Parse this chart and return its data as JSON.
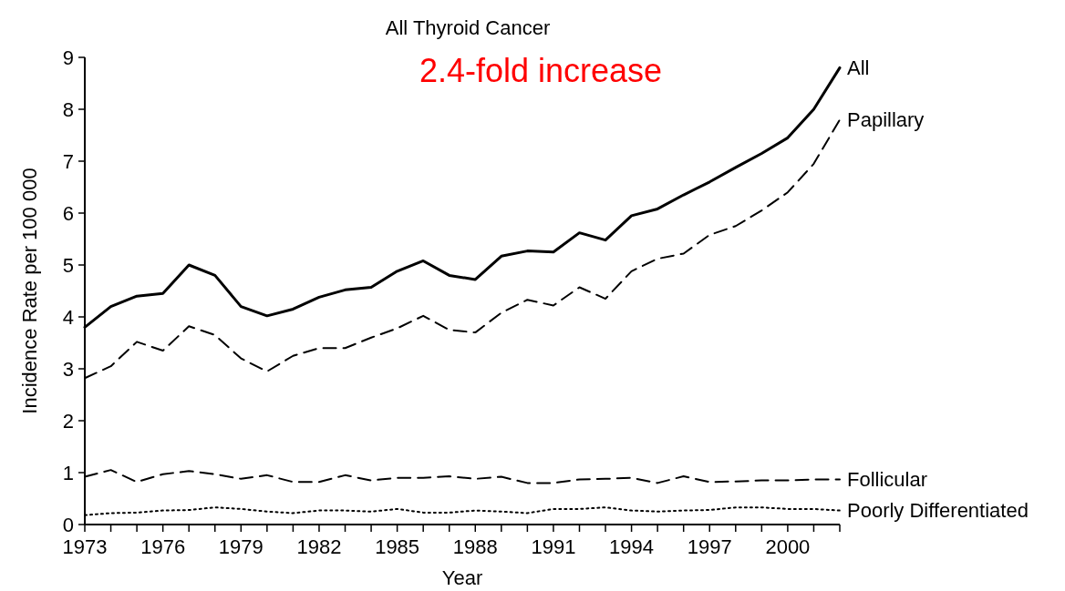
{
  "chart_data": {
    "type": "line",
    "title": "All Thyroid Cancer",
    "xlabel": "Year",
    "ylabel": "Incidence Rate per 100 000",
    "annotations": [
      "2.4-fold increase"
    ],
    "x": [
      1973,
      1974,
      1975,
      1976,
      1977,
      1978,
      1979,
      1980,
      1981,
      1982,
      1983,
      1984,
      1985,
      1986,
      1987,
      1988,
      1989,
      1990,
      1991,
      1992,
      1993,
      1994,
      1995,
      1996,
      1997,
      1998,
      1999,
      2000,
      2001,
      2002
    ],
    "series": [
      {
        "name": "All",
        "color": "#000000",
        "line_style": "solid",
        "values": [
          3.8,
          4.2,
          4.4,
          4.45,
          5.0,
          4.8,
          4.2,
          4.02,
          4.15,
          4.38,
          4.52,
          4.57,
          4.88,
          5.08,
          4.8,
          4.72,
          5.17,
          5.27,
          5.25,
          5.62,
          5.48,
          5.95,
          6.08,
          6.35,
          6.6,
          6.88,
          7.15,
          7.45,
          8.0,
          8.8
        ]
      },
      {
        "name": "Papillary",
        "color": "#000000",
        "line_style": "dashed",
        "values": [
          2.82,
          3.05,
          3.52,
          3.35,
          3.82,
          3.65,
          3.2,
          2.95,
          3.25,
          3.4,
          3.4,
          3.6,
          3.78,
          4.02,
          3.75,
          3.7,
          4.08,
          4.33,
          4.22,
          4.57,
          4.35,
          4.88,
          5.12,
          5.22,
          5.58,
          5.75,
          6.05,
          6.4,
          6.95,
          7.8
        ]
      },
      {
        "name": "Follicular",
        "color": "#000000",
        "line_style": "dashed",
        "values": [
          0.92,
          1.05,
          0.82,
          0.97,
          1.03,
          0.97,
          0.88,
          0.95,
          0.82,
          0.82,
          0.95,
          0.85,
          0.9,
          0.9,
          0.93,
          0.88,
          0.92,
          0.8,
          0.8,
          0.87,
          0.88,
          0.9,
          0.8,
          0.93,
          0.82,
          0.83,
          0.85,
          0.85,
          0.87,
          0.87
        ]
      },
      {
        "name": "Poorly Differentiated",
        "color": "#000000",
        "line_style": "dotted",
        "values": [
          0.18,
          0.22,
          0.23,
          0.27,
          0.28,
          0.33,
          0.3,
          0.25,
          0.22,
          0.27,
          0.27,
          0.25,
          0.3,
          0.23,
          0.23,
          0.27,
          0.25,
          0.22,
          0.3,
          0.3,
          0.33,
          0.27,
          0.25,
          0.27,
          0.28,
          0.33,
          0.33,
          0.3,
          0.3,
          0.27
        ]
      }
    ],
    "xlim": [
      1973,
      2002
    ],
    "xticks": [
      1973,
      {
        "value": 1974,
        "label": null
      },
      {
        "value": 1975,
        "label": null
      },
      1976,
      {
        "value": 1977,
        "label": null
      },
      {
        "value": 1978,
        "label": null
      },
      1979,
      {
        "value": 1980,
        "label": null
      },
      {
        "value": 1981,
        "label": null
      },
      1982,
      {
        "value": 1983,
        "label": null
      },
      {
        "value": 1984,
        "label": null
      },
      1985,
      {
        "value": 1986,
        "label": null
      },
      {
        "value": 1987,
        "label": null
      },
      1988,
      {
        "value": 1989,
        "label": null
      },
      {
        "value": 1990,
        "label": null
      },
      1991,
      {
        "value": 1992,
        "label": null
      },
      {
        "value": 1993,
        "label": null
      },
      1994,
      {
        "value": 1995,
        "label": null
      },
      {
        "value": 1996,
        "label": null
      },
      1997,
      {
        "value": 1998,
        "label": null
      },
      {
        "value": 1999,
        "label": null
      },
      2000,
      {
        "value": 2001,
        "label": null
      },
      {
        "value": 2002,
        "label": null
      }
    ],
    "ylim": [
      0,
      9
    ],
    "yticks": [
      0,
      1,
      2,
      3,
      4,
      5,
      6,
      7,
      8,
      9
    ],
    "grid": false,
    "legend": false,
    "marker": "none"
  }
}
